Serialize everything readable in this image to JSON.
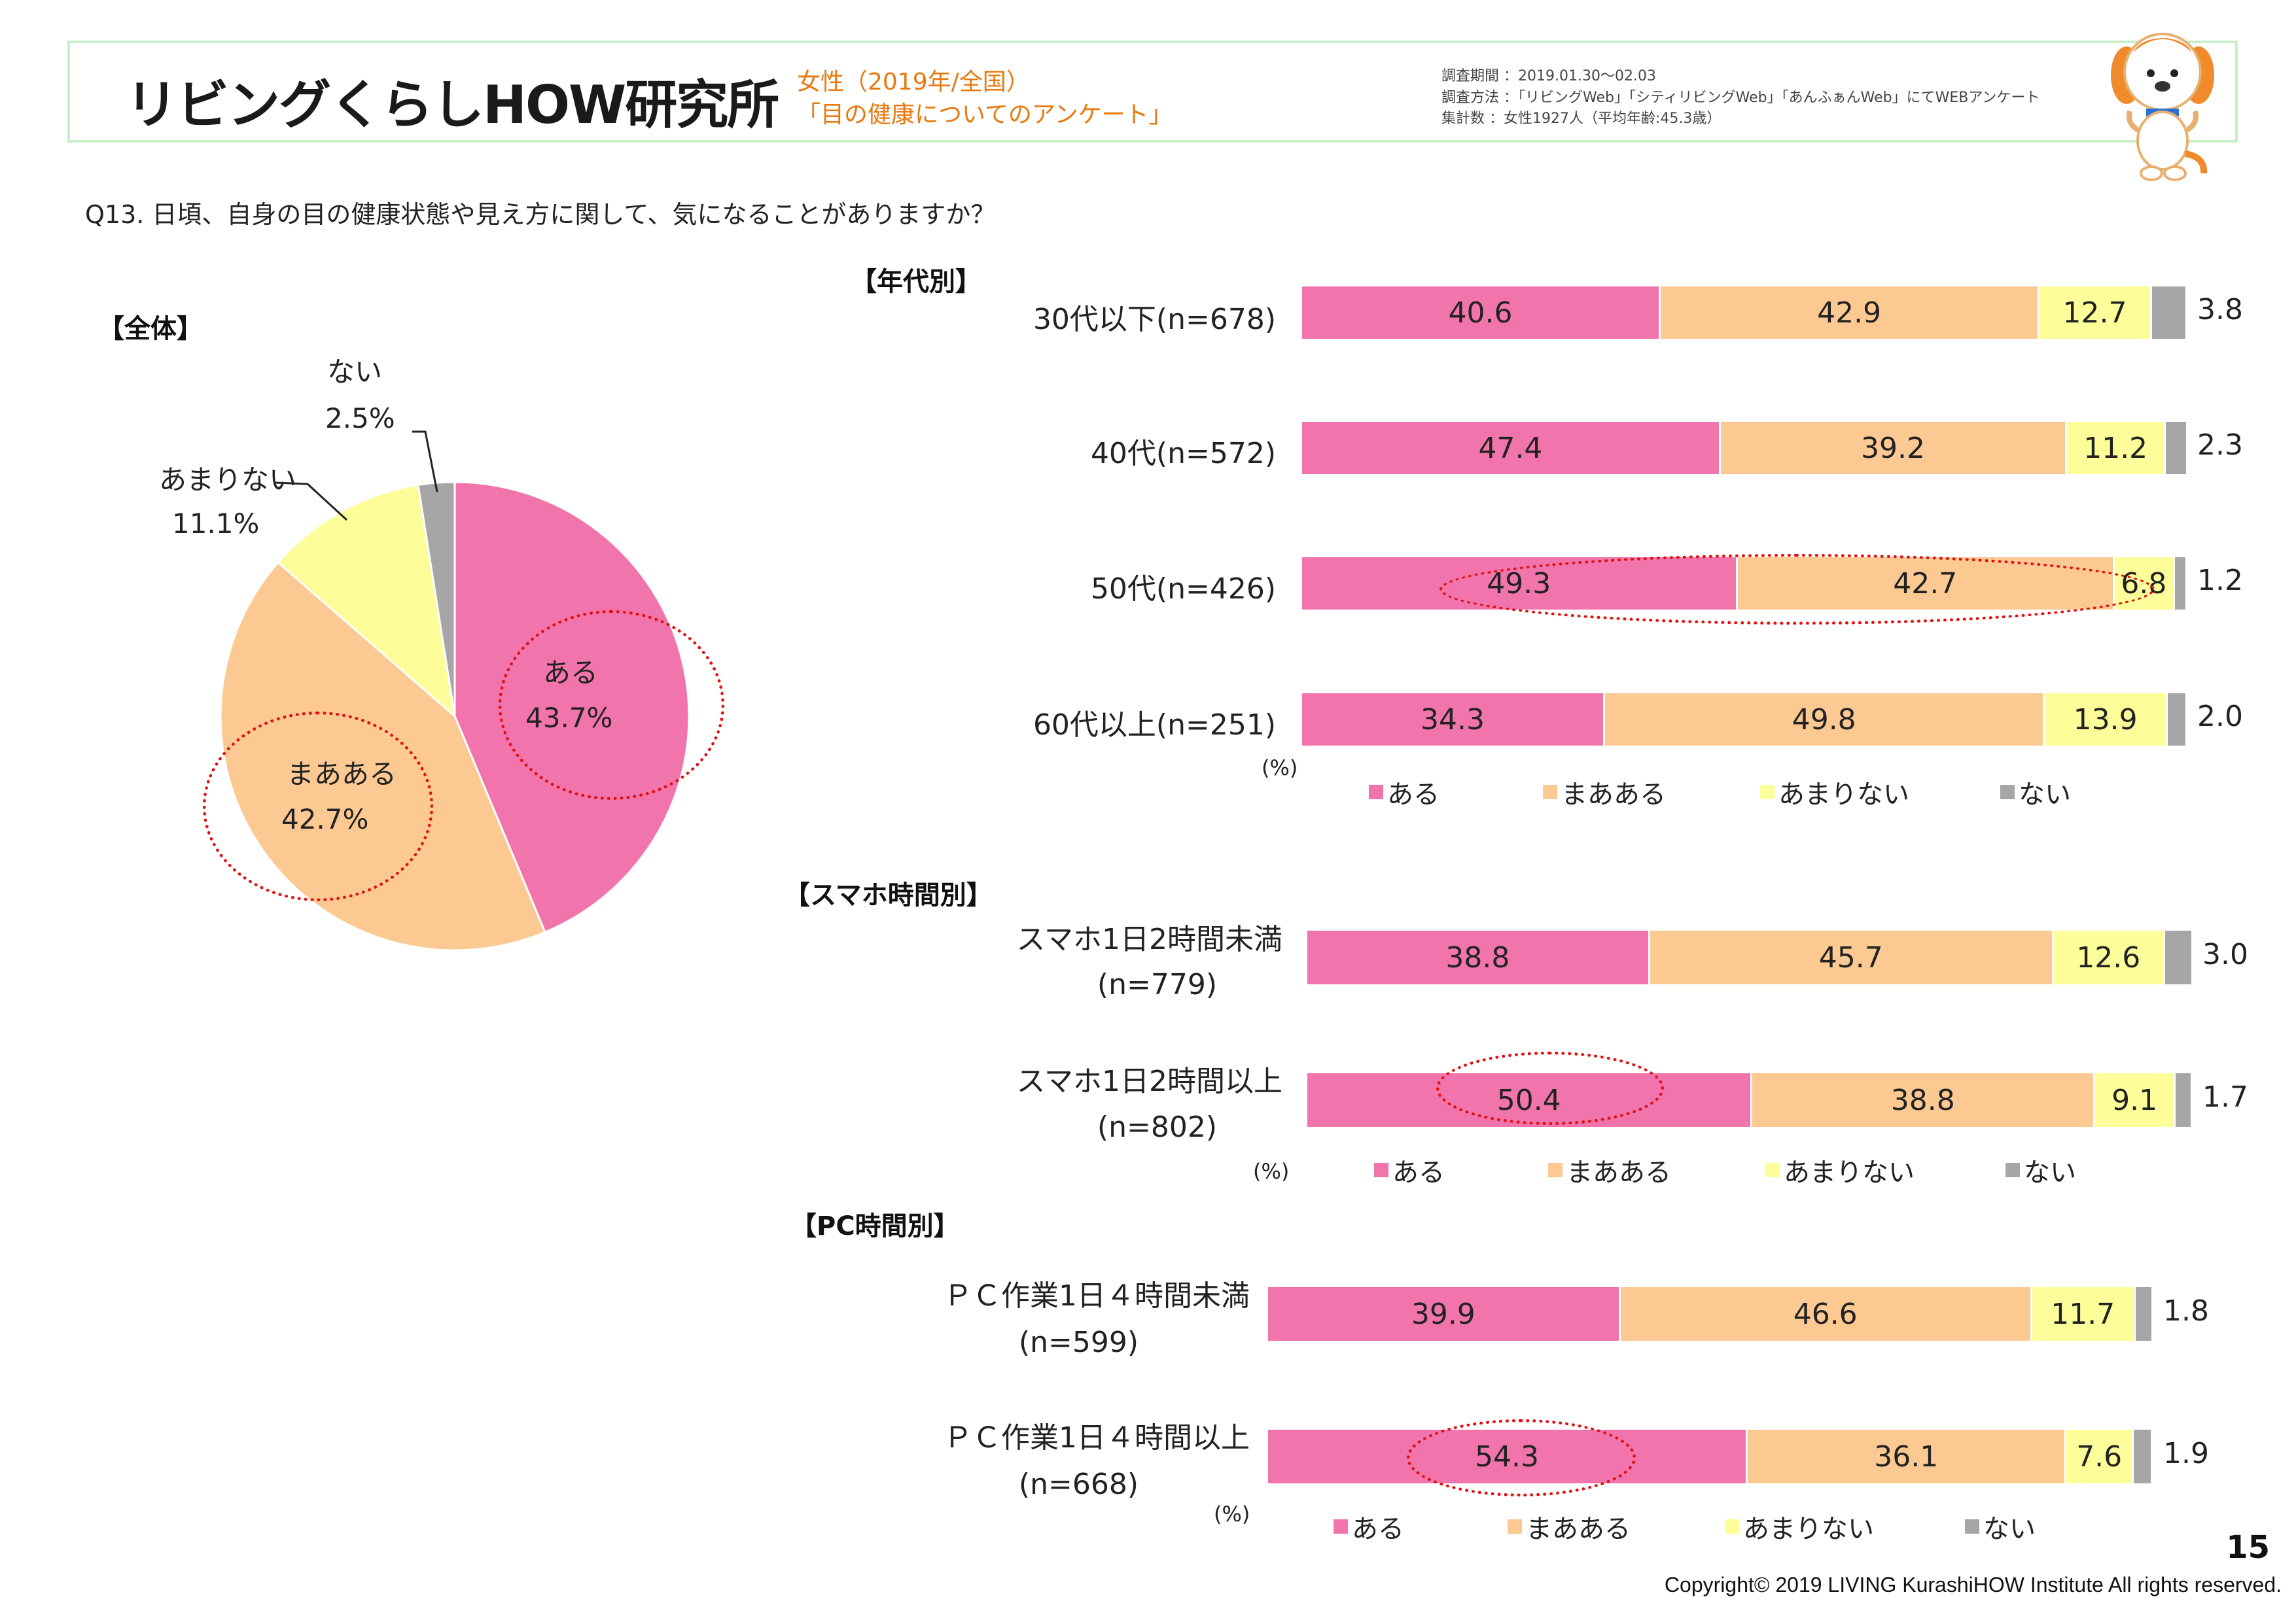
{
  "header": {
    "logo": "リビングくらしHOW研究所",
    "subtitle_line1": "女性（2019年/全国）",
    "subtitle_line2": "「目の健康についてのアンケート」",
    "meta_period": "調査期間 ：2019.01.30〜02.03",
    "meta_method": "調査方法 ：「リビングWeb」「シティリビングWeb」「あんふぁんWeb」にてWEBアンケート",
    "meta_count": "集計数 ：女性1927人（平均年齢:45.3歳）"
  },
  "question": "Q13. 日頃、自身の目の健康状態や見え方に関して、気になることがありますか？",
  "colors": {
    "aru": "#f274ac",
    "maaaru": "#fcc992",
    "amarinai": "#fdfd99",
    "nai": "#a6a6a6",
    "highlight": "#e01010"
  },
  "pie": {
    "section": "【全体】",
    "labels": [
      {
        "name": "ある",
        "value": "43.7%"
      },
      {
        "name": "まあある",
        "value": "42.7%"
      },
      {
        "name": "あまりない",
        "value": "11.1%"
      },
      {
        "name": "ない",
        "value": "2.5%"
      }
    ]
  },
  "sections": {
    "age": "【年代別】",
    "smartphone": "【スマホ時間別】",
    "pc": "【PC時間別】"
  },
  "row_labels": {
    "age_0": "30代以下(n=678)",
    "age_1": "40代(n=572)",
    "age_2": "50代(n=426)",
    "age_3": "60代以上(n=251)",
    "sp_0_l1": "スマホ1日2時間未満",
    "sp_0_l2": "(n=779)",
    "sp_1_l1": "スマホ1日2時間以上",
    "sp_1_l2": "(n=802)",
    "pc_0_l1": "ＰＣ作業1日４時間未満",
    "pc_0_l2": "(n=599)",
    "pc_1_l1": "ＰＣ作業1日４時間以上",
    "pc_1_l2": "(n=668)"
  },
  "legend": {
    "aru": "ある",
    "maaaru": "まあある",
    "amarinai": "あまりない",
    "nai": "ない",
    "unit": "(%)"
  },
  "chart_data": [
    {
      "type": "pie",
      "title": "【全体】",
      "categories": [
        "ある",
        "まあある",
        "あまりない",
        "ない"
      ],
      "values": [
        43.7,
        42.7,
        11.1,
        2.5
      ]
    },
    {
      "type": "bar",
      "stacked": true,
      "orientation": "horizontal",
      "title": "【年代別】",
      "unit": "(%)",
      "categories": [
        "30代以下(n=678)",
        "40代(n=572)",
        "50代(n=426)",
        "60代以上(n=251)"
      ],
      "series": [
        {
          "name": "ある",
          "values": [
            40.6,
            47.4,
            49.3,
            34.3
          ]
        },
        {
          "name": "まあある",
          "values": [
            42.9,
            39.2,
            42.7,
            49.8
          ]
        },
        {
          "name": "あまりない",
          "values": [
            12.7,
            11.2,
            6.8,
            13.9
          ]
        },
        {
          "name": "ない",
          "values": [
            3.8,
            2.3,
            1.2,
            2.0
          ]
        }
      ],
      "display": [
        [
          "40.6",
          "42.9",
          "12.7",
          "3.8"
        ],
        [
          "47.4",
          "39.2",
          "11.2",
          "2.3"
        ],
        [
          "49.3",
          "42.7",
          "6.8",
          "1.2"
        ],
        [
          "34.3",
          "49.8",
          "13.9",
          "2.0"
        ]
      ],
      "legend": "bottom"
    },
    {
      "type": "bar",
      "stacked": true,
      "orientation": "horizontal",
      "title": "【スマホ時間別】",
      "unit": "(%)",
      "categories": [
        "スマホ1日2時間未満 (n=779)",
        "スマホ1日2時間以上 (n=802)"
      ],
      "series": [
        {
          "name": "ある",
          "values": [
            38.8,
            50.4
          ]
        },
        {
          "name": "まあある",
          "values": [
            45.7,
            38.8
          ]
        },
        {
          "name": "あまりない",
          "values": [
            12.6,
            9.1
          ]
        },
        {
          "name": "ない",
          "values": [
            3.0,
            1.7
          ]
        }
      ],
      "display": [
        [
          "38.8",
          "45.7",
          "12.6",
          "3.0"
        ],
        [
          "50.4",
          "38.8",
          "9.1",
          "1.7"
        ]
      ],
      "legend": "bottom"
    },
    {
      "type": "bar",
      "stacked": true,
      "orientation": "horizontal",
      "title": "【PC時間別】",
      "unit": "(%)",
      "categories": [
        "ＰＣ作業1日４時間未満 (n=599)",
        "ＰＣ作業1日４時間以上 (n=668)"
      ],
      "series": [
        {
          "name": "ある",
          "values": [
            39.9,
            54.3
          ]
        },
        {
          "name": "まあある",
          "values": [
            46.6,
            36.1
          ]
        },
        {
          "name": "あまりない",
          "values": [
            11.7,
            7.6
          ]
        },
        {
          "name": "ない",
          "values": [
            1.8,
            1.9
          ]
        }
      ],
      "display": [
        [
          "39.9",
          "46.6",
          "11.7",
          "1.8"
        ],
        [
          "54.3",
          "36.1",
          "7.6",
          "1.9"
        ]
      ],
      "legend": "bottom"
    }
  ],
  "footer": {
    "page": "15",
    "copyright": "Copyright© 2019 LIVING KurashiHOW Institute All rights reserved."
  }
}
